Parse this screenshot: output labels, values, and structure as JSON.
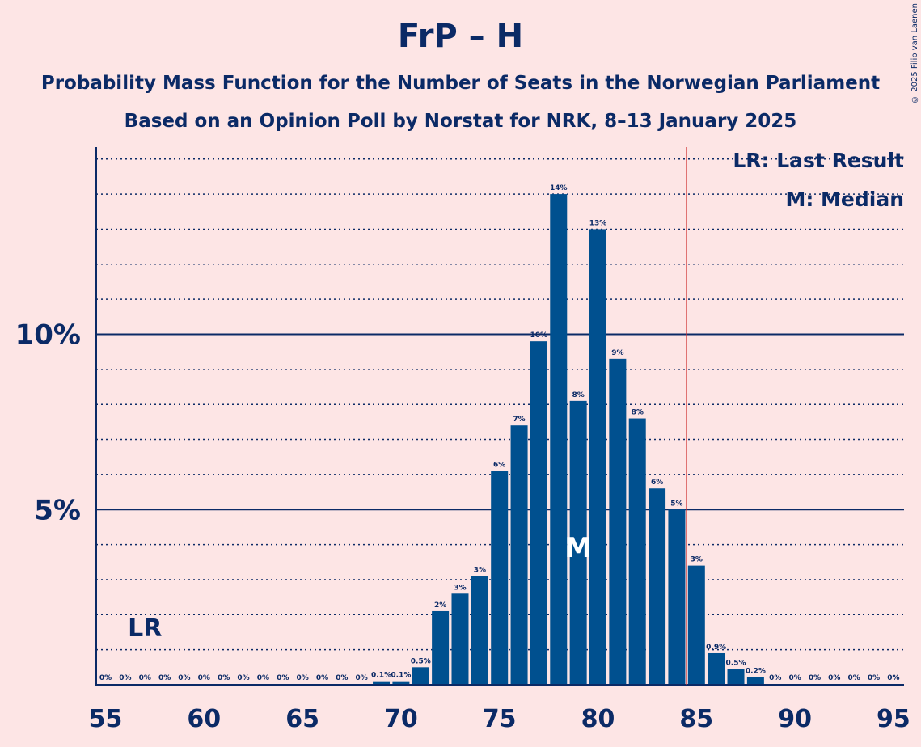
{
  "title": "FrP – H",
  "subtitle_1": "Probability Mass Function for the Number of Seats in the Norwegian Parliament",
  "subtitle_2": "Based on an Opinion Poll by Norstat for NRK, 8–13 January 2025",
  "copyright": "© 2025 Filip van Laenen",
  "legend": {
    "last_result": "LR: Last Result",
    "median": "M: Median"
  },
  "markers": {
    "last_result_label": "LR",
    "last_result_seat": 57,
    "median_label": "M",
    "median_seat": 79,
    "majority_line_seat": 84.5
  },
  "colors": {
    "background": "#fde5e5",
    "bar": "#00508f",
    "text": "#0b2a66",
    "majority_line": "#d03030"
  },
  "chart_data": {
    "type": "bar",
    "x": [
      55,
      56,
      57,
      58,
      59,
      60,
      61,
      62,
      63,
      64,
      65,
      66,
      67,
      68,
      69,
      70,
      71,
      72,
      73,
      74,
      75,
      76,
      77,
      78,
      79,
      80,
      81,
      82,
      83,
      84,
      85,
      86,
      87,
      88,
      89,
      90,
      91,
      92,
      93,
      94,
      95
    ],
    "values": [
      0,
      0,
      0,
      0,
      0,
      0,
      0,
      0,
      0,
      0,
      0,
      0,
      0,
      0,
      0.1,
      0.1,
      0.5,
      2.1,
      2.6,
      3.1,
      6.1,
      7.4,
      9.8,
      14.0,
      8.1,
      13.0,
      9.3,
      7.6,
      5.6,
      5.0,
      3.4,
      0.9,
      0.45,
      0.22,
      0,
      0,
      0,
      0,
      0,
      0,
      0
    ],
    "data_labels": [
      "0%",
      "0%",
      "0%",
      "0%",
      "0%",
      "0%",
      "0%",
      "0%",
      "0%",
      "0%",
      "0%",
      "0%",
      "0%",
      "0%",
      "0.1%",
      "0.1%",
      "0.5%",
      "2%",
      "3%",
      "3%",
      "6%",
      "7%",
      "10%",
      "14%",
      "8%",
      "13%",
      "9%",
      "8%",
      "6%",
      "5%",
      "3%",
      "0.9%",
      "0.5%",
      "0.2%",
      "0%",
      "0%",
      "0%",
      "0%",
      "0%",
      "0%",
      "0%"
    ],
    "x_ticks": [
      55,
      60,
      65,
      70,
      75,
      80,
      85,
      90,
      95
    ],
    "y_ticks": [
      {
        "value": 5,
        "label": "5%"
      },
      {
        "value": 10,
        "label": "10%"
      }
    ],
    "ylim": [
      0,
      15.3
    ],
    "xlabel": "",
    "ylabel": "",
    "grid": "dotted at every 1%, solid at 5% and 10%"
  }
}
